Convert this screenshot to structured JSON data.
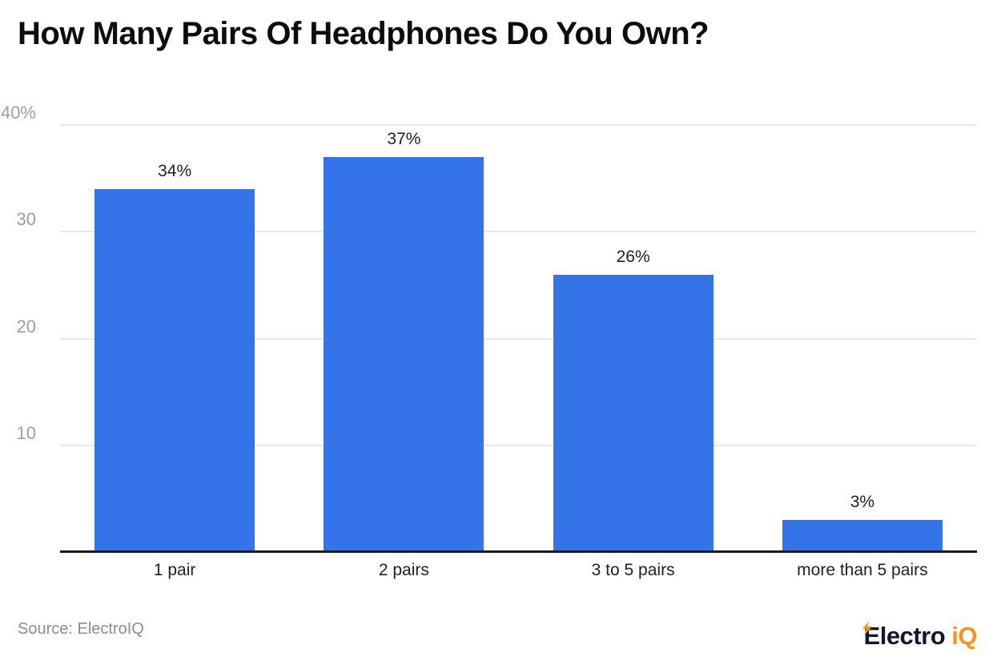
{
  "header": {
    "title": "How Many Pairs Of Headphones Do You Own?"
  },
  "chart_data": {
    "type": "bar",
    "title": "How Many Pairs Of Headphones Do You Own?",
    "categories": [
      "1 pair",
      "2 pairs",
      "3 to 5 pairs",
      "more than 5 pairs"
    ],
    "values": [
      34,
      37,
      26,
      3
    ],
    "value_labels": [
      "34%",
      "37%",
      "26%",
      "3%"
    ],
    "xlabel": "",
    "ylabel": "",
    "ylim": [
      0,
      40
    ],
    "yticks": [
      {
        "value": 10,
        "label": "10"
      },
      {
        "value": 20,
        "label": "20"
      },
      {
        "value": 30,
        "label": "30"
      },
      {
        "value": 40,
        "label": "40%"
      }
    ],
    "grid": true,
    "legend": "none",
    "bar_color": "#3473e8",
    "gridline_color": "#e9e9e9",
    "axis_line_color": "#1c1c1c",
    "tick_label_color": "#9e9e9e",
    "data_label_color": "#1f1f1f"
  },
  "footer": {
    "source": "Source: ElectroIQ",
    "logo": {
      "text_dark": "Electro",
      "text_accent": "iQ",
      "dark_color": "#16162b",
      "accent_color": "#f7941d",
      "icon": "lightning-bolt"
    }
  }
}
